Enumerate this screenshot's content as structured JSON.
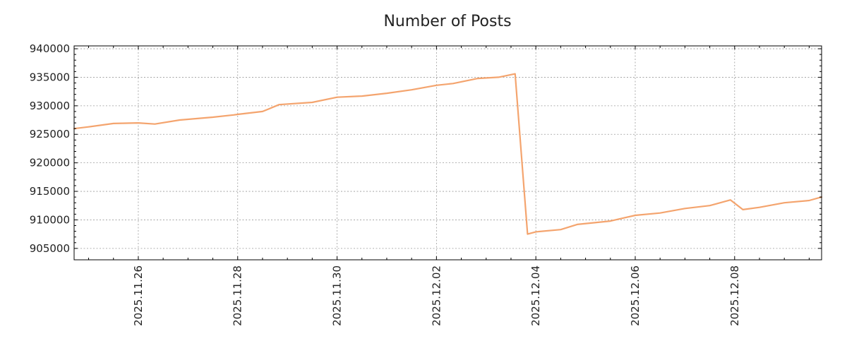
{
  "chart_data": {
    "type": "line",
    "title": "Number of Posts",
    "xlabel": "",
    "ylabel": "",
    "x_range": [
      "2025-11-24T17:00",
      "2025-12-09T18:00"
    ],
    "ylim": [
      903000,
      940500
    ],
    "y_ticks": [
      905000,
      910000,
      915000,
      920000,
      925000,
      930000,
      935000,
      940000
    ],
    "x_ticks": [
      "2025-11-26",
      "2025-11-28",
      "2025-11-30",
      "2025-12-02",
      "2025-12-04",
      "2025-12-06",
      "2025-12-08"
    ],
    "x_tick_labels": [
      "2025.11.26",
      "2025.11.28",
      "2025.11.30",
      "2025.12.02",
      "2025.12.04",
      "2025.12.06",
      "2025.12.08"
    ],
    "grid": true,
    "legend": "none",
    "color": "#f4a46e",
    "series": [
      {
        "points": [
          [
            "2025-11-24T17:00",
            926000
          ],
          [
            "2025-11-25T00:00",
            926300
          ],
          [
            "2025-11-25T12:00",
            926900
          ],
          [
            "2025-11-26T00:00",
            927000
          ],
          [
            "2025-11-26T08:00",
            926800
          ],
          [
            "2025-11-26T20:00",
            927500
          ],
          [
            "2025-11-27T12:00",
            928000
          ],
          [
            "2025-11-27T22:00",
            928400
          ],
          [
            "2025-11-28T00:00",
            928500
          ],
          [
            "2025-11-28T12:00",
            929000
          ],
          [
            "2025-11-28T20:00",
            930200
          ],
          [
            "2025-11-29T12:00",
            930600
          ],
          [
            "2025-11-30T00:00",
            931500
          ],
          [
            "2025-11-30T12:00",
            931700
          ],
          [
            "2025-12-01T00:00",
            932200
          ],
          [
            "2025-12-01T12:00",
            932800
          ],
          [
            "2025-12-02T00:00",
            933600
          ],
          [
            "2025-12-02T08:00",
            933900
          ],
          [
            "2025-12-02T20:00",
            934800
          ],
          [
            "2025-12-03T06:00",
            935000
          ],
          [
            "2025-12-03T14:00",
            935600
          ],
          [
            "2025-12-03T20:00",
            907500
          ],
          [
            "2025-12-04T00:00",
            907900
          ],
          [
            "2025-12-04T12:00",
            908300
          ],
          [
            "2025-12-04T20:00",
            909200
          ],
          [
            "2025-12-05T12:00",
            909800
          ],
          [
            "2025-12-06T00:00",
            910800
          ],
          [
            "2025-12-06T12:00",
            911200
          ],
          [
            "2025-12-07T00:00",
            912000
          ],
          [
            "2025-12-07T12:00",
            912500
          ],
          [
            "2025-12-07T22:00",
            913500
          ],
          [
            "2025-12-08T04:00",
            911800
          ],
          [
            "2025-12-08T12:00",
            912200
          ],
          [
            "2025-12-09T00:00",
            913000
          ],
          [
            "2025-12-09T12:00",
            913400
          ],
          [
            "2025-12-09T18:00",
            914000
          ]
        ]
      }
    ]
  }
}
